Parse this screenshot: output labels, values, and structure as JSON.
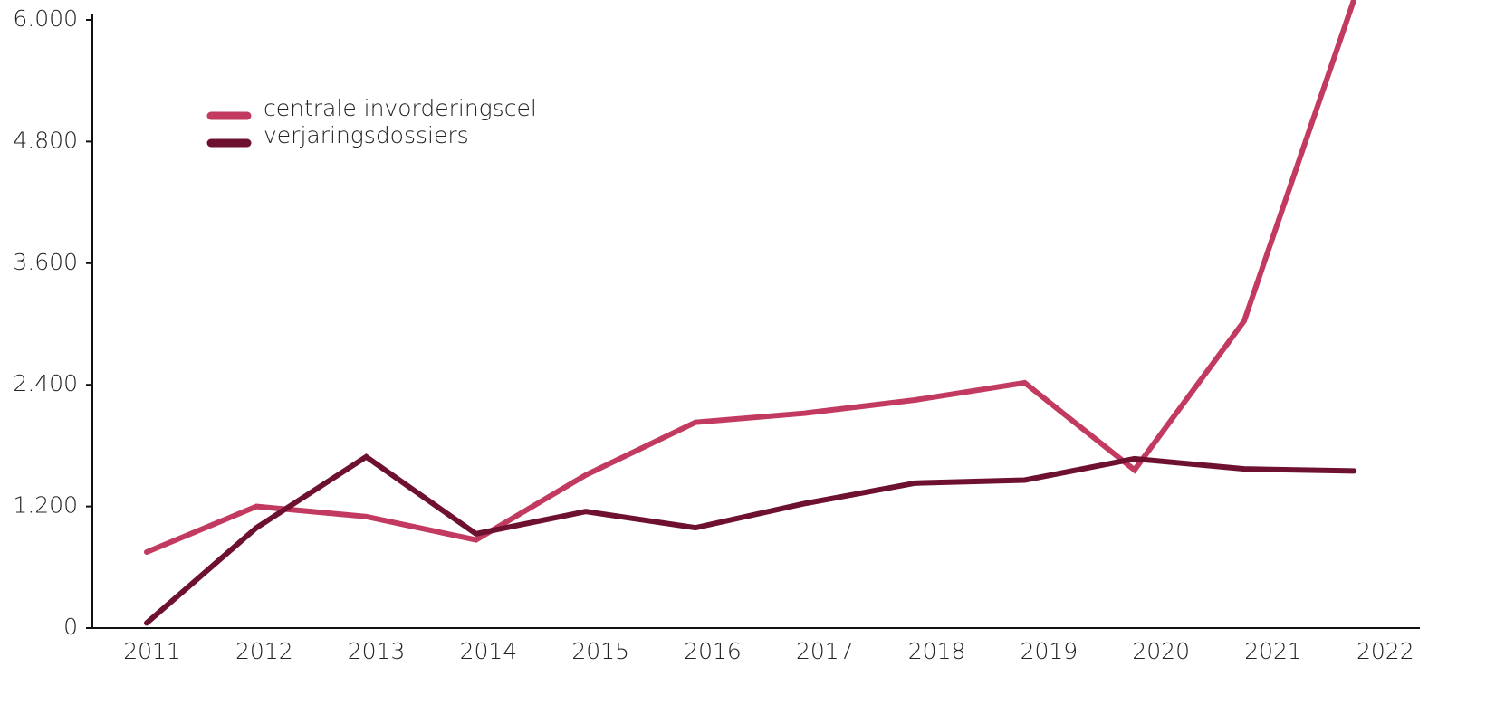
{
  "chart_data": {
    "type": "line",
    "categories": [
      "2011",
      "2012",
      "2013",
      "2014",
      "2015",
      "2016",
      "2017",
      "2018",
      "2019",
      "2020",
      "2021",
      "2022"
    ],
    "series": [
      {
        "name": "centrale invorderingscel",
        "color": "#c23a5f",
        "values": [
          750,
          1200,
          1100,
          870,
          1510,
          2030,
          2120,
          2250,
          2420,
          1560,
          3030,
          6200
        ]
      },
      {
        "name": "verjaringsdossiers",
        "color": "#6e1130",
        "values": [
          50,
          990,
          1690,
          930,
          1150,
          990,
          1230,
          1430,
          1460,
          1670,
          1570,
          1550
        ]
      }
    ],
    "ylim": [
      0,
      6000
    ],
    "yticks": [
      {
        "value": 0,
        "label": "0"
      },
      {
        "value": 1200,
        "label": "1.200"
      },
      {
        "value": 2400,
        "label": "2.400"
      },
      {
        "value": 3600,
        "label": "3.600"
      },
      {
        "value": 4800,
        "label": "4.800"
      },
      {
        "value": 6000,
        "label": "6.000"
      }
    ]
  }
}
